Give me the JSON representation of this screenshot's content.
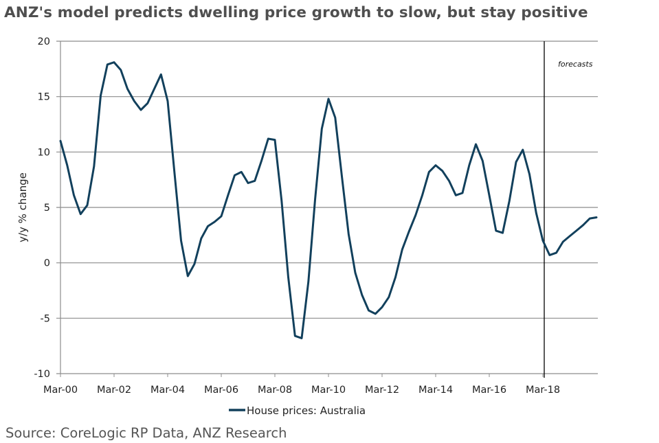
{
  "title": "ANZ's model predicts dwelling price growth to slow, but stay positive",
  "source": "Source: CoreLogic RP Data, ANZ Research",
  "chart_data": {
    "type": "line",
    "title": "ANZ's model predicts dwelling price growth to slow, but stay positive",
    "xlabel": "",
    "ylabel": "y/y % change",
    "ylim": [
      -10,
      20
    ],
    "yticks": [
      20,
      15,
      10,
      5,
      0,
      -5,
      -10
    ],
    "xtick_labels": [
      "Mar-00",
      "Mar-02",
      "Mar-04",
      "Mar-06",
      "Mar-08",
      "Mar-10",
      "Mar-12",
      "Mar-14",
      "Mar-16",
      "Mar-18"
    ],
    "x_frequency": "quarterly",
    "x_start": "Mar-00",
    "grid": "horizontal",
    "legend_position": "bottom",
    "annotation": {
      "text": "forecasts",
      "at": "Mar-18"
    },
    "line_color": "#12405c",
    "series": [
      {
        "name": "House prices: Australia",
        "values": [
          11.0,
          8.8,
          6.1,
          4.4,
          5.2,
          8.7,
          15.1,
          17.9,
          18.1,
          17.4,
          15.7,
          14.6,
          13.8,
          14.4,
          15.7,
          17.0,
          14.6,
          8.2,
          2.0,
          -1.2,
          -0.1,
          2.2,
          3.3,
          3.7,
          4.2,
          6.1,
          7.9,
          8.2,
          7.2,
          7.4,
          9.2,
          11.2,
          11.1,
          5.6,
          -1.3,
          -6.6,
          -6.8,
          -1.7,
          5.7,
          12.1,
          14.8,
          13.1,
          7.8,
          2.6,
          -0.9,
          -2.9,
          -4.3,
          -4.6,
          -4.0,
          -3.1,
          -1.3,
          1.2,
          2.8,
          4.3,
          6.1,
          8.2,
          8.8,
          8.3,
          7.4,
          6.1,
          6.3,
          8.8,
          10.7,
          9.2,
          6.1,
          2.9,
          2.7,
          5.6,
          9.1,
          10.2,
          8.0,
          4.5,
          2.0,
          0.7,
          0.9,
          1.9,
          2.4,
          2.9,
          3.4,
          4.0,
          4.1
        ]
      }
    ]
  }
}
